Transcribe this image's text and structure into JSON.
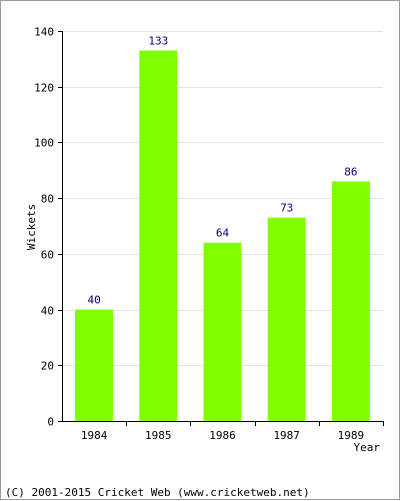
{
  "chart_data": {
    "type": "bar",
    "categories": [
      "1984",
      "1985",
      "1986",
      "1987",
      "1989"
    ],
    "values": [
      40,
      133,
      64,
      73,
      86
    ],
    "xlabel": "Year",
    "ylabel": "Wickets",
    "ylim": [
      0,
      140
    ],
    "yticks": [
      0,
      20,
      40,
      60,
      80,
      100,
      120,
      140
    ],
    "grid": true,
    "bar_color": "#80ff00",
    "label_color": "#00007f"
  },
  "footer": "(C) 2001-2015 Cricket Web (www.cricketweb.net)"
}
